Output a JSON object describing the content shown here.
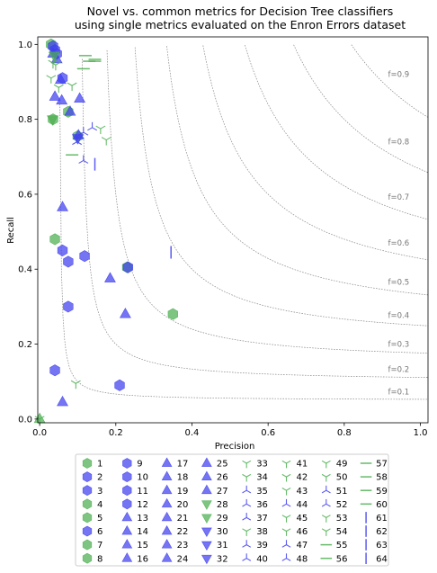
{
  "chart_data": {
    "type": "scatter",
    "title": "Novel vs. common metrics for Decision Tree classifiers\nusing single metrics evaluated on the Enron Errors dataset",
    "xlabel": "Precision",
    "ylabel": "Recall",
    "xlim": [
      -0.005,
      1.02
    ],
    "ylim": [
      -0.01,
      1.02
    ],
    "xticks": [
      "0.0",
      "0.2",
      "0.4",
      "0.6",
      "0.8",
      "1.0"
    ],
    "yticks": [
      "0.0",
      "0.2",
      "0.4",
      "0.6",
      "0.8",
      "1.0"
    ],
    "grid": false,
    "legend_position": "bottom",
    "iso_f1": {
      "values": [
        0.1,
        0.2,
        0.3,
        0.4,
        0.5,
        0.6,
        0.7,
        0.8,
        0.9
      ],
      "labels": [
        "f=0.1",
        "f=0.2",
        "f=0.3",
        "f=0.4",
        "f=0.5",
        "f=0.6",
        "f=0.7",
        "f=0.8",
        "f=0.9"
      ]
    },
    "colors": {
      "green": "#4caf50",
      "blue": "#4040ee"
    },
    "marker_groups": [
      {
        "ids": [
          "1",
          "2",
          "3",
          "4",
          "5",
          "6",
          "7",
          "8"
        ],
        "marker": "hexagon"
      },
      {
        "ids": [
          "9",
          "10",
          "11",
          "12"
        ],
        "marker": "hexagon"
      },
      {
        "ids": [
          "13",
          "14",
          "15",
          "16",
          "17",
          "18",
          "19",
          "20",
          "21",
          "22",
          "23",
          "24",
          "25",
          "26",
          "27"
        ],
        "marker": "triangle-up"
      },
      {
        "ids": [
          "28",
          "29",
          "30",
          "31",
          "32"
        ],
        "marker": "triangle-down"
      },
      {
        "ids": [
          "33",
          "34",
          "35",
          "36",
          "37",
          "38",
          "39",
          "40",
          "41",
          "42",
          "43",
          "44",
          "45",
          "46",
          "47",
          "48",
          "49",
          "50",
          "51",
          "52",
          "53",
          "54"
        ],
        "marker": "tri"
      },
      {
        "ids": [
          "55",
          "56",
          "57",
          "58",
          "59",
          "60"
        ],
        "marker": "hline"
      },
      {
        "ids": [
          "61",
          "62",
          "63",
          "64"
        ],
        "marker": "vline"
      }
    ],
    "legend": [
      {
        "label": "1",
        "marker": "hexagon",
        "color": "green"
      },
      {
        "label": "2",
        "marker": "hexagon",
        "color": "blue"
      },
      {
        "label": "3",
        "marker": "hexagon",
        "color": "blue"
      },
      {
        "label": "4",
        "marker": "hexagon",
        "color": "green"
      },
      {
        "label": "5",
        "marker": "hexagon",
        "color": "green"
      },
      {
        "label": "6",
        "marker": "hexagon",
        "color": "blue"
      },
      {
        "label": "7",
        "marker": "hexagon",
        "color": "green"
      },
      {
        "label": "8",
        "marker": "hexagon",
        "color": "green"
      },
      {
        "label": "9",
        "marker": "hexagon",
        "color": "blue"
      },
      {
        "label": "10",
        "marker": "hexagon",
        "color": "blue"
      },
      {
        "label": "11",
        "marker": "hexagon",
        "color": "blue"
      },
      {
        "label": "12",
        "marker": "hexagon",
        "color": "blue"
      },
      {
        "label": "13",
        "marker": "triangle-up",
        "color": "blue"
      },
      {
        "label": "14",
        "marker": "triangle-up",
        "color": "blue"
      },
      {
        "label": "15",
        "marker": "triangle-up",
        "color": "blue"
      },
      {
        "label": "16",
        "marker": "triangle-up",
        "color": "blue"
      },
      {
        "label": "17",
        "marker": "triangle-up",
        "color": "blue"
      },
      {
        "label": "18",
        "marker": "triangle-up",
        "color": "blue"
      },
      {
        "label": "19",
        "marker": "triangle-up",
        "color": "blue"
      },
      {
        "label": "20",
        "marker": "triangle-up",
        "color": "blue"
      },
      {
        "label": "21",
        "marker": "triangle-up",
        "color": "blue"
      },
      {
        "label": "22",
        "marker": "triangle-up",
        "color": "blue"
      },
      {
        "label": "23",
        "marker": "triangle-up",
        "color": "blue"
      },
      {
        "label": "24",
        "marker": "triangle-up",
        "color": "blue"
      },
      {
        "label": "25",
        "marker": "triangle-up",
        "color": "blue"
      },
      {
        "label": "26",
        "marker": "triangle-up",
        "color": "blue"
      },
      {
        "label": "27",
        "marker": "triangle-up",
        "color": "blue"
      },
      {
        "label": "28",
        "marker": "triangle-down",
        "color": "green"
      },
      {
        "label": "29",
        "marker": "triangle-down",
        "color": "green"
      },
      {
        "label": "30",
        "marker": "triangle-down",
        "color": "blue"
      },
      {
        "label": "31",
        "marker": "triangle-down",
        "color": "blue"
      },
      {
        "label": "32",
        "marker": "triangle-down",
        "color": "blue"
      },
      {
        "label": "33",
        "marker": "tri",
        "color": "green"
      },
      {
        "label": "34",
        "marker": "tri",
        "color": "green"
      },
      {
        "label": "35",
        "marker": "tri-down",
        "color": "blue"
      },
      {
        "label": "36",
        "marker": "tri-down",
        "color": "blue"
      },
      {
        "label": "37",
        "marker": "tri-down",
        "color": "blue"
      },
      {
        "label": "38",
        "marker": "tri",
        "color": "green"
      },
      {
        "label": "39",
        "marker": "tri-down",
        "color": "blue"
      },
      {
        "label": "40",
        "marker": "tri-down",
        "color": "blue"
      },
      {
        "label": "41",
        "marker": "tri",
        "color": "green"
      },
      {
        "label": "42",
        "marker": "tri",
        "color": "green"
      },
      {
        "label": "43",
        "marker": "tri",
        "color": "green"
      },
      {
        "label": "44",
        "marker": "tri-down",
        "color": "blue"
      },
      {
        "label": "45",
        "marker": "tri",
        "color": "green"
      },
      {
        "label": "46",
        "marker": "tri",
        "color": "green"
      },
      {
        "label": "47",
        "marker": "tri-down",
        "color": "blue"
      },
      {
        "label": "48",
        "marker": "tri-down",
        "color": "blue"
      },
      {
        "label": "49",
        "marker": "tri",
        "color": "green"
      },
      {
        "label": "50",
        "marker": "tri",
        "color": "green"
      },
      {
        "label": "51",
        "marker": "tri-down",
        "color": "blue"
      },
      {
        "label": "52",
        "marker": "tri-down",
        "color": "blue"
      },
      {
        "label": "53",
        "marker": "tri",
        "color": "green"
      },
      {
        "label": "54",
        "marker": "tri",
        "color": "green"
      },
      {
        "label": "55",
        "marker": "hline",
        "color": "green"
      },
      {
        "label": "56",
        "marker": "hline",
        "color": "green"
      },
      {
        "label": "57",
        "marker": "hline",
        "color": "green"
      },
      {
        "label": "58",
        "marker": "hline",
        "color": "green"
      },
      {
        "label": "59",
        "marker": "hline",
        "color": "green"
      },
      {
        "label": "60",
        "marker": "hline",
        "color": "green"
      },
      {
        "label": "61",
        "marker": "vline",
        "color": "blue"
      },
      {
        "label": "62",
        "marker": "vline",
        "color": "blue"
      },
      {
        "label": "63",
        "marker": "vline",
        "color": "blue"
      },
      {
        "label": "64",
        "marker": "vline",
        "color": "blue"
      }
    ],
    "points": [
      {
        "x": 0.03,
        "y": 1.0,
        "marker": "hexagon",
        "color": "green"
      },
      {
        "x": 0.035,
        "y": 0.995,
        "marker": "hexagon",
        "color": "blue"
      },
      {
        "x": 0.04,
        "y": 0.985,
        "marker": "hexagon",
        "color": "blue"
      },
      {
        "x": 0.045,
        "y": 0.975,
        "marker": "hexagon",
        "color": "blue"
      },
      {
        "x": 0.06,
        "y": 0.91,
        "marker": "hexagon",
        "color": "blue"
      },
      {
        "x": 0.035,
        "y": 0.8,
        "marker": "hexagon",
        "color": "green"
      },
      {
        "x": 0.075,
        "y": 0.82,
        "marker": "hexagon",
        "color": "green"
      },
      {
        "x": 0.1,
        "y": 0.755,
        "marker": "hexagon",
        "color": "green"
      },
      {
        "x": 0.04,
        "y": 0.48,
        "marker": "hexagon",
        "color": "green"
      },
      {
        "x": 0.06,
        "y": 0.45,
        "marker": "hexagon",
        "color": "blue"
      },
      {
        "x": 0.075,
        "y": 0.42,
        "marker": "hexagon",
        "color": "blue"
      },
      {
        "x": 0.118,
        "y": 0.435,
        "marker": "hexagon",
        "color": "blue"
      },
      {
        "x": 0.075,
        "y": 0.3,
        "marker": "hexagon",
        "color": "blue"
      },
      {
        "x": 0.23,
        "y": 0.405,
        "marker": "hexagon",
        "color": "green"
      },
      {
        "x": 0.232,
        "y": 0.405,
        "marker": "hexagon",
        "color": "blue"
      },
      {
        "x": 0.35,
        "y": 0.28,
        "marker": "hexagon",
        "color": "green"
      },
      {
        "x": 0.04,
        "y": 0.13,
        "marker": "hexagon",
        "color": "blue"
      },
      {
        "x": 0.21,
        "y": 0.09,
        "marker": "hexagon",
        "color": "blue"
      },
      {
        "x": 0.035,
        "y": 0.975,
        "marker": "triangle-up",
        "color": "blue"
      },
      {
        "x": 0.045,
        "y": 0.96,
        "marker": "triangle-up",
        "color": "blue"
      },
      {
        "x": 0.055,
        "y": 0.905,
        "marker": "triangle-up",
        "color": "blue"
      },
      {
        "x": 0.04,
        "y": 0.86,
        "marker": "triangle-up",
        "color": "blue"
      },
      {
        "x": 0.058,
        "y": 0.85,
        "marker": "triangle-up",
        "color": "blue"
      },
      {
        "x": 0.105,
        "y": 0.855,
        "marker": "triangle-up",
        "color": "blue"
      },
      {
        "x": 0.08,
        "y": 0.82,
        "marker": "triangle-up",
        "color": "blue"
      },
      {
        "x": 0.102,
        "y": 0.757,
        "marker": "triangle-up",
        "color": "blue"
      },
      {
        "x": 0.06,
        "y": 0.565,
        "marker": "triangle-up",
        "color": "blue"
      },
      {
        "x": 0.185,
        "y": 0.375,
        "marker": "triangle-up",
        "color": "blue"
      },
      {
        "x": 0.225,
        "y": 0.28,
        "marker": "triangle-up",
        "color": "blue"
      },
      {
        "x": 0.06,
        "y": 0.045,
        "marker": "triangle-up",
        "color": "blue"
      },
      {
        "x": 0.0,
        "y": 0.0,
        "marker": "triangle-up",
        "color": "green"
      },
      {
        "x": 0.038,
        "y": 0.97,
        "marker": "triangle-down",
        "color": "green"
      },
      {
        "x": 0.034,
        "y": 0.8,
        "marker": "triangle-down",
        "color": "green"
      },
      {
        "x": 0.1,
        "y": 0.75,
        "marker": "triangle-down",
        "color": "blue"
      },
      {
        "x": 0.035,
        "y": 0.95,
        "marker": "tri",
        "color": "green"
      },
      {
        "x": 0.042,
        "y": 0.945,
        "marker": "tri",
        "color": "green"
      },
      {
        "x": 0.03,
        "y": 0.91,
        "marker": "tri",
        "color": "green"
      },
      {
        "x": 0.05,
        "y": 0.885,
        "marker": "tri",
        "color": "green"
      },
      {
        "x": 0.085,
        "y": 0.89,
        "marker": "tri",
        "color": "green"
      },
      {
        "x": 0.16,
        "y": 0.775,
        "marker": "tri",
        "color": "green"
      },
      {
        "x": 0.175,
        "y": 0.745,
        "marker": "tri",
        "color": "green"
      },
      {
        "x": 0.095,
        "y": 0.095,
        "marker": "tri",
        "color": "green"
      },
      {
        "x": 0.0,
        "y": 0.0,
        "marker": "tri",
        "color": "green"
      },
      {
        "x": 0.115,
        "y": 0.765,
        "marker": "tri-down",
        "color": "blue"
      },
      {
        "x": 0.138,
        "y": 0.778,
        "marker": "tri-down",
        "color": "blue"
      },
      {
        "x": 0.098,
        "y": 0.74,
        "marker": "tri-down",
        "color": "blue"
      },
      {
        "x": 0.115,
        "y": 0.69,
        "marker": "tri-down",
        "color": "blue"
      },
      {
        "x": 0.12,
        "y": 0.97,
        "marker": "hline",
        "color": "green"
      },
      {
        "x": 0.13,
        "y": 0.955,
        "marker": "hline",
        "color": "green"
      },
      {
        "x": 0.145,
        "y": 0.96,
        "marker": "hline",
        "color": "green"
      },
      {
        "x": 0.145,
        "y": 0.955,
        "marker": "hline",
        "color": "green"
      },
      {
        "x": 0.115,
        "y": 0.935,
        "marker": "hline",
        "color": "green"
      },
      {
        "x": 0.085,
        "y": 0.705,
        "marker": "hline",
        "color": "green"
      },
      {
        "x": 0.145,
        "y": 0.68,
        "marker": "vline",
        "color": "blue"
      },
      {
        "x": 0.345,
        "y": 0.445,
        "marker": "vline",
        "color": "blue"
      }
    ]
  }
}
